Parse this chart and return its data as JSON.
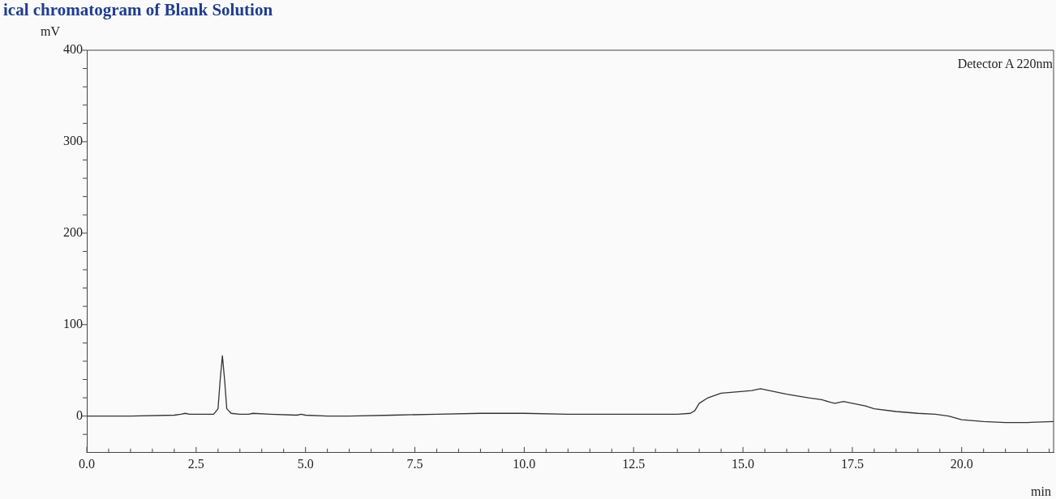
{
  "chart_data": {
    "type": "line",
    "title": "ical chromatogram of Blank Solution",
    "xlabel": "min",
    "ylabel": "mV",
    "annotations": [
      "Detector A 220nm"
    ],
    "x": [
      0,
      1,
      2,
      2.15,
      2.25,
      2.35,
      2.6,
      2.9,
      3.0,
      3.05,
      3.1,
      3.15,
      3.2,
      3.3,
      3.5,
      3.7,
      3.8,
      4.2,
      4.8,
      4.9,
      5.0,
      5.5,
      6.0,
      7.0,
      8.0,
      9.0,
      10.0,
      11.0,
      12.0,
      12.7,
      13.5,
      13.8,
      13.9,
      14.0,
      14.2,
      14.5,
      15.0,
      15.2,
      15.4,
      15.6,
      16.0,
      16.5,
      16.8,
      17.0,
      17.1,
      17.3,
      17.5,
      17.8,
      18.0,
      18.5,
      19.0,
      19.4,
      19.7,
      20.0,
      20.5,
      21.0,
      21.5,
      22.1
    ],
    "series": [
      {
        "color": "#333333",
        "values": [
          0,
          0,
          1,
          2,
          3,
          2,
          2,
          2,
          8,
          40,
          66,
          40,
          8,
          3,
          2,
          2,
          3,
          2,
          1,
          2,
          1,
          0,
          0,
          1,
          2,
          3,
          3,
          2,
          2,
          2,
          2,
          3,
          6,
          14,
          20,
          25,
          27,
          28,
          30,
          28,
          24,
          20,
          18,
          15,
          14,
          16,
          14,
          11,
          8,
          5,
          3,
          2,
          0,
          -4,
          -6,
          -7,
          -7,
          -6
        ]
      }
    ],
    "xlim": [
      0,
      22.1
    ],
    "ylim": [
      -40,
      400
    ],
    "xticks": [
      {
        "value": 0,
        "label": "0.0"
      },
      {
        "value": 0.5,
        "label": null
      },
      {
        "value": 1,
        "label": null
      },
      {
        "value": 1.5,
        "label": null
      },
      {
        "value": 2,
        "label": null
      },
      {
        "value": 2.5,
        "label": "2.5"
      },
      {
        "value": 3,
        "label": null
      },
      {
        "value": 3.5,
        "label": null
      },
      {
        "value": 4,
        "label": null
      },
      {
        "value": 4.5,
        "label": null
      },
      {
        "value": 5,
        "label": "5.0"
      },
      {
        "value": 5.5,
        "label": null
      },
      {
        "value": 6,
        "label": null
      },
      {
        "value": 6.5,
        "label": null
      },
      {
        "value": 7,
        "label": null
      },
      {
        "value": 7.5,
        "label": "7.5"
      },
      {
        "value": 8,
        "label": null
      },
      {
        "value": 8.5,
        "label": null
      },
      {
        "value": 9,
        "label": null
      },
      {
        "value": 9.5,
        "label": null
      },
      {
        "value": 10,
        "label": "10.0"
      },
      {
        "value": 10.5,
        "label": null
      },
      {
        "value": 11,
        "label": null
      },
      {
        "value": 11.5,
        "label": null
      },
      {
        "value": 12,
        "label": null
      },
      {
        "value": 12.5,
        "label": "12.5"
      },
      {
        "value": 13,
        "label": null
      },
      {
        "value": 13.5,
        "label": null
      },
      {
        "value": 14,
        "label": null
      },
      {
        "value": 14.5,
        "label": null
      },
      {
        "value": 15,
        "label": "15.0"
      },
      {
        "value": 15.5,
        "label": null
      },
      {
        "value": 16,
        "label": null
      },
      {
        "value": 16.5,
        "label": null
      },
      {
        "value": 17,
        "label": null
      },
      {
        "value": 17.5,
        "label": "17.5"
      },
      {
        "value": 18,
        "label": null
      },
      {
        "value": 18.5,
        "label": null
      },
      {
        "value": 19,
        "label": null
      },
      {
        "value": 19.5,
        "label": null
      },
      {
        "value": 20,
        "label": "20.0"
      },
      {
        "value": 20.5,
        "label": null
      },
      {
        "value": 21,
        "label": null
      },
      {
        "value": 21.5,
        "label": null
      },
      {
        "value": 22,
        "label": null
      }
    ],
    "yticks": [
      {
        "value": -20,
        "label": null
      },
      0,
      {
        "value": 20,
        "label": null
      },
      {
        "value": 40,
        "label": null
      },
      {
        "value": 60,
        "label": null
      },
      {
        "value": 80,
        "label": null
      },
      100,
      {
        "value": 120,
        "label": null
      },
      {
        "value": 140,
        "label": null
      },
      {
        "value": 160,
        "label": null
      },
      {
        "value": 180,
        "label": null
      },
      200,
      {
        "value": 220,
        "label": null
      },
      {
        "value": 240,
        "label": null
      },
      {
        "value": 260,
        "label": null
      },
      {
        "value": 280,
        "label": null
      },
      300,
      {
        "value": 320,
        "label": null
      },
      {
        "value": 340,
        "label": null
      },
      {
        "value": 360,
        "label": null
      },
      {
        "value": 380,
        "label": null
      },
      400
    ],
    "grid": false,
    "legend": false,
    "marker": "none",
    "line_style": "solid"
  }
}
